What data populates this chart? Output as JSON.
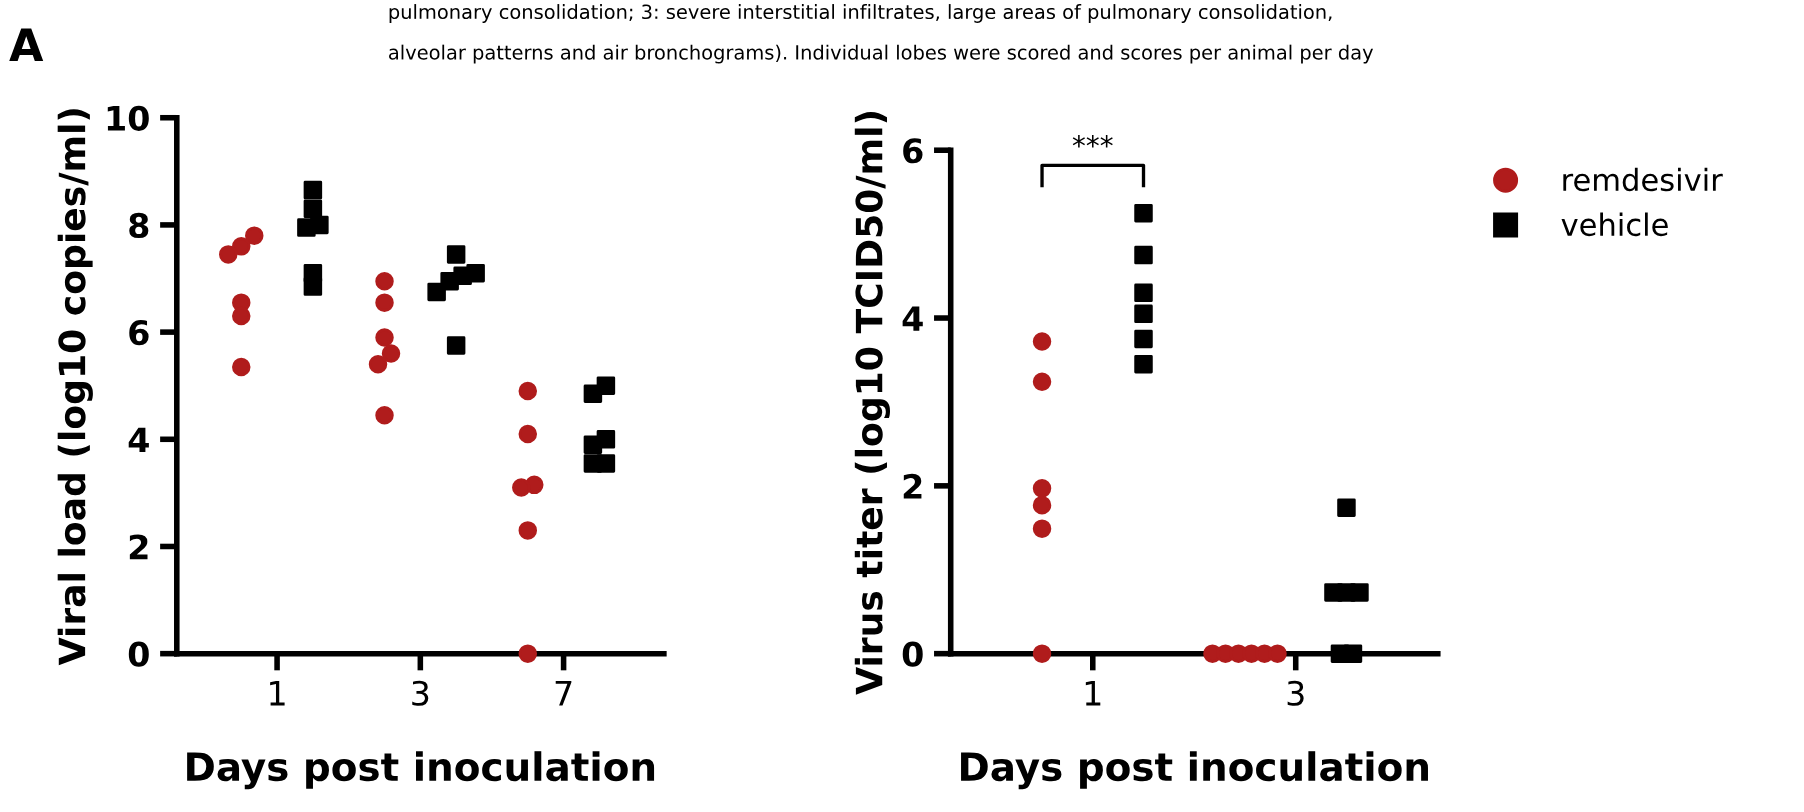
{
  "chart_data": [
    {
      "type": "scatter",
      "title": "A",
      "annotations": [
        "pulmonary consolidation; 3: severe interstitial infiltrates, large areas of pulmonary consolidation,",
        "alveolar patterns and air bronchograms). Individual lobes were scored and scores per animal per day"
      ],
      "xlabel": "Days post inoculation",
      "ylabel": "Viral load (log10 copies/ml)",
      "categories": [
        "1",
        "3",
        "7"
      ],
      "ylim": [
        0,
        10
      ],
      "yticks": [
        0,
        2,
        4,
        6,
        8,
        10
      ],
      "grid": false,
      "legend": false,
      "series": [
        {
          "color": "#b01c1c",
          "marker": "circle",
          "x": [
            "1",
            "1",
            "1",
            "1",
            "1",
            "1",
            "3",
            "3",
            "3",
            "3",
            "3",
            "3",
            "7",
            "7",
            "7",
            "7",
            "7",
            "7"
          ],
          "values": [
            7.8,
            7.6,
            7.45,
            6.55,
            6.3,
            5.35,
            6.95,
            6.55,
            5.9,
            5.6,
            5.4,
            4.45,
            4.9,
            4.1,
            3.15,
            3.1,
            2.3,
            0
          ]
        },
        {
          "color": "#000000",
          "marker": "square",
          "x": [
            "1",
            "1",
            "1",
            "1",
            "1",
            "1",
            "3",
            "3",
            "3",
            "3",
            "3",
            "3",
            "7",
            "7",
            "7",
            "7",
            "7",
            "7"
          ],
          "values": [
            8.65,
            8.3,
            8.0,
            7.95,
            7.1,
            6.85,
            7.45,
            7.1,
            7.05,
            6.95,
            6.75,
            5.75,
            5.0,
            4.85,
            4.0,
            3.9,
            3.55,
            3.55
          ]
        }
      ]
    },
    {
      "type": "scatter",
      "xlabel": "Days post inoculation",
      "ylabel": "Virus titer (log10 TCID50/ml)",
      "categories": [
        "1",
        "3"
      ],
      "ylim": [
        0,
        6
      ],
      "yticks": [
        0,
        2,
        4,
        6
      ],
      "grid": false,
      "legend": "right",
      "annotations": [
        "***"
      ],
      "series": [
        {
          "name": "remdesivir",
          "color": "#b01c1c",
          "marker": "circle",
          "x": [
            "1",
            "1",
            "1",
            "1",
            "1",
            "1",
            "3",
            "3",
            "3",
            "3",
            "3",
            "3"
          ],
          "values": [
            3.72,
            3.24,
            1.97,
            1.77,
            1.49,
            0,
            0,
            0,
            0,
            0,
            0,
            0
          ]
        },
        {
          "name": "vehicle",
          "color": "#000000",
          "marker": "square",
          "x": [
            "1",
            "1",
            "1",
            "1",
            "1",
            "1",
            "3",
            "3",
            "3",
            "3",
            "3",
            "3"
          ],
          "values": [
            5.25,
            4.75,
            4.3,
            4.05,
            3.75,
            3.45,
            1.74,
            0.73,
            0.73,
            0.73,
            0,
            0
          ]
        }
      ]
    }
  ]
}
